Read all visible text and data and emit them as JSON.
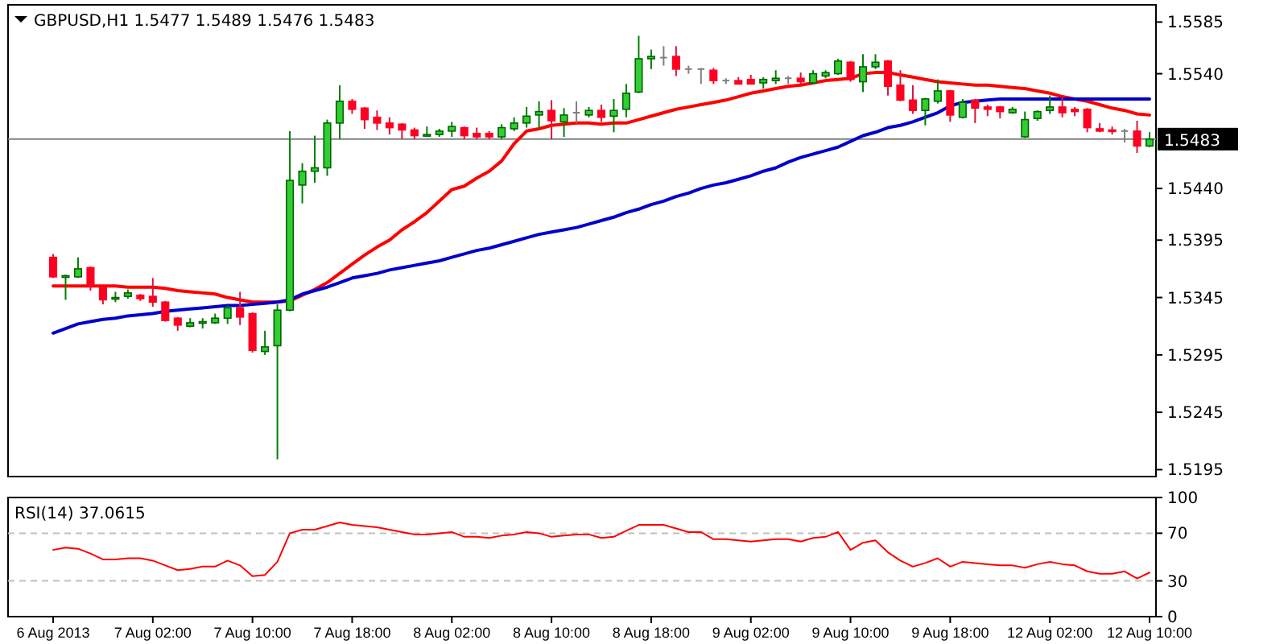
{
  "chart_data": [
    {
      "type": "candlestick",
      "title": "GBPUSD,H1 1.5477 1.5489 1.5476 1.5483",
      "categories": [
        null,
        null,
        null,
        null,
        null,
        null,
        null,
        null,
        null,
        null,
        null,
        null,
        null,
        null,
        null,
        null,
        null,
        null,
        null,
        null,
        null,
        null,
        null,
        null,
        null,
        null,
        null,
        null,
        null,
        null,
        null,
        null,
        null,
        null,
        null,
        null,
        null,
        null,
        null,
        null,
        null,
        null,
        null,
        null,
        null,
        null,
        null,
        null,
        null,
        null,
        null,
        null,
        null,
        null,
        null,
        null,
        null,
        null,
        null,
        null,
        null,
        null,
        null,
        null,
        null,
        null,
        null,
        null,
        null,
        null,
        null,
        null,
        null,
        null,
        null,
        null,
        null,
        null,
        null,
        null,
        null,
        null,
        null,
        null,
        null,
        null,
        null,
        null,
        null
      ],
      "ohlc": [
        [
          1.538,
          1.5383,
          1.5362,
          1.5363
        ],
        [
          1.5363,
          1.5365,
          1.5343,
          1.5364
        ],
        [
          1.5363,
          1.538,
          1.5362,
          1.537
        ],
        [
          1.5371,
          1.5372,
          1.5351,
          1.5356
        ],
        [
          1.5354,
          1.5355,
          1.5339,
          1.5343
        ],
        [
          1.5344,
          1.535,
          1.5341,
          1.5345
        ],
        [
          1.5346,
          1.5352,
          1.5344,
          1.5349
        ],
        [
          1.5347,
          1.5348,
          1.5342,
          1.5344
        ],
        [
          1.5346,
          1.5362,
          1.5337,
          1.5341
        ],
        [
          1.5341,
          1.5342,
          1.5324,
          1.5325
        ],
        [
          1.5327,
          1.5328,
          1.5316,
          1.5321
        ],
        [
          1.532,
          1.5327,
          1.5319,
          1.5323
        ],
        [
          1.5323,
          1.5327,
          1.5318,
          1.5324
        ],
        [
          1.5323,
          1.5331,
          1.5322,
          1.5327
        ],
        [
          1.5327,
          1.5338,
          1.5322,
          1.5336
        ],
        [
          1.5336,
          1.535,
          1.5321,
          1.5328
        ],
        [
          1.5331,
          1.5332,
          1.5297,
          1.5299
        ],
        [
          1.5298,
          1.5316,
          1.5295,
          1.5302
        ],
        [
          1.5303,
          1.5339,
          1.5204,
          1.5334
        ],
        [
          1.5334,
          1.549,
          1.5333,
          1.5447
        ],
        [
          1.5443,
          1.5462,
          1.5427,
          1.5455
        ],
        [
          1.5455,
          1.5486,
          1.5445,
          1.5458
        ],
        [
          1.5458,
          1.55,
          1.5451,
          1.5497
        ],
        [
          1.5497,
          1.553,
          1.5483,
          1.5516
        ],
        [
          1.5516,
          1.5518,
          1.5505,
          1.5509
        ],
        [
          1.551,
          1.5511,
          1.5492,
          1.55
        ],
        [
          1.5502,
          1.5508,
          1.5491,
          1.5497
        ],
        [
          1.5497,
          1.5502,
          1.5487,
          1.5493
        ],
        [
          1.5496,
          1.5497,
          1.5483,
          1.5491
        ],
        [
          1.5491,
          1.5493,
          1.5483,
          1.5486
        ],
        [
          1.5486,
          1.5494,
          1.5485,
          1.5487
        ],
        [
          1.5487,
          1.5492,
          1.5485,
          1.549
        ],
        [
          1.549,
          1.5498,
          1.5485,
          1.5494
        ],
        [
          1.5493,
          1.5494,
          1.5483,
          1.5486
        ],
        [
          1.5488,
          1.5493,
          1.5483,
          1.5485
        ],
        [
          1.5488,
          1.549,
          1.5483,
          1.5485
        ],
        [
          1.5485,
          1.5496,
          1.5483,
          1.5493
        ],
        [
          1.5492,
          1.5502,
          1.549,
          1.5497
        ],
        [
          1.5497,
          1.5511,
          1.5493,
          1.5503
        ],
        [
          1.5504,
          1.5516,
          1.5492,
          1.5507
        ],
        [
          1.5508,
          1.5517,
          1.5483,
          1.5499
        ],
        [
          1.5498,
          1.551,
          1.5485,
          1.5504
        ],
        [
          1.5506,
          1.5516,
          1.5497,
          1.5506
        ],
        [
          1.5504,
          1.5511,
          1.5502,
          1.5508
        ],
        [
          1.5508,
          1.5513,
          1.5498,
          1.5502
        ],
        [
          1.5503,
          1.5518,
          1.5489,
          1.5508
        ],
        [
          1.5509,
          1.5531,
          1.5502,
          1.5523
        ],
        [
          1.5524,
          1.5573,
          1.5523,
          1.5553
        ],
        [
          1.5553,
          1.5561,
          1.5544,
          1.5555
        ],
        [
          1.5554,
          1.5564,
          1.5547,
          1.5554
        ],
        [
          1.5555,
          1.5564,
          1.5538,
          1.5544
        ],
        [
          1.5544,
          1.5547,
          1.554,
          1.5544
        ],
        [
          1.5544,
          1.5545,
          1.5531,
          1.5544
        ],
        [
          1.5543,
          1.5545,
          1.5531,
          1.5534
        ],
        [
          1.5534,
          1.5536,
          1.5531,
          1.5534
        ],
        [
          1.5534,
          1.5537,
          1.5531,
          1.5531
        ],
        [
          1.5535,
          1.5539,
          1.5531,
          1.5531
        ],
        [
          1.5532,
          1.5537,
          1.5527,
          1.5535
        ],
        [
          1.5534,
          1.5543,
          1.5531,
          1.5536
        ],
        [
          1.5536,
          1.5538,
          1.5531,
          1.5536
        ],
        [
          1.5536,
          1.5541,
          1.553,
          1.5533
        ],
        [
          1.5532,
          1.5543,
          1.5531,
          1.554
        ],
        [
          1.5538,
          1.5543,
          1.5536,
          1.5541
        ],
        [
          1.554,
          1.5553,
          1.5539,
          1.5551
        ],
        [
          1.555,
          1.5551,
          1.5533,
          1.5535
        ],
        [
          1.5533,
          1.5557,
          1.5524,
          1.5546
        ],
        [
          1.5546,
          1.5557,
          1.5544,
          1.555
        ],
        [
          1.5551,
          1.5552,
          1.5521,
          1.5529
        ],
        [
          1.553,
          1.5543,
          1.5516,
          1.5517
        ],
        [
          1.5517,
          1.553,
          1.5505,
          1.5508
        ],
        [
          1.5508,
          1.5519,
          1.5495,
          1.5518
        ],
        [
          1.5516,
          1.5535,
          1.5514,
          1.5525
        ],
        [
          1.5525,
          1.5526,
          1.5498,
          1.5504
        ],
        [
          1.5502,
          1.5518,
          1.5501,
          1.5515
        ],
        [
          1.5517,
          1.5518,
          1.5497,
          1.551
        ],
        [
          1.5511,
          1.5513,
          1.5503,
          1.5509
        ],
        [
          1.5511,
          1.5512,
          1.5501,
          1.5507
        ],
        [
          1.5506,
          1.5511,
          1.5505,
          1.5509
        ],
        [
          1.5485,
          1.5507,
          1.5484,
          1.55
        ],
        [
          1.5501,
          1.5508,
          1.5499,
          1.5507
        ],
        [
          1.5508,
          1.5521,
          1.5505,
          1.5511
        ],
        [
          1.5511,
          1.552,
          1.5502,
          1.5506
        ],
        [
          1.5509,
          1.5511,
          1.5503,
          1.5507
        ],
        [
          1.5509,
          1.551,
          1.5489,
          1.5493
        ],
        [
          1.5492,
          1.5497,
          1.5489,
          1.549
        ],
        [
          1.5491,
          1.5494,
          1.5487,
          1.549
        ],
        [
          1.549,
          1.5492,
          1.548,
          1.549
        ],
        [
          1.549,
          1.5499,
          1.5471,
          1.5477
        ],
        [
          1.5477,
          1.5489,
          1.5476,
          1.5483
        ]
      ],
      "series": [
        {
          "type": "line",
          "color": "#ff0000",
          "values": [
            1.5355,
            1.5355,
            1.5355,
            1.5355,
            1.5355,
            1.5355,
            1.5354,
            1.5354,
            1.5354,
            1.5353,
            1.5351,
            1.535,
            1.5349,
            1.5348,
            1.5345,
            1.5343,
            1.5341,
            1.5341,
            1.5341,
            1.5342,
            1.5347,
            1.5352,
            1.5358,
            1.5366,
            1.5374,
            1.5382,
            1.5389,
            1.5395,
            1.5404,
            1.5411,
            1.5419,
            1.5429,
            1.5439,
            1.5442,
            1.5449,
            1.5455,
            1.5464,
            1.5479,
            1.549,
            1.5492,
            1.5495,
            1.5496,
            1.5497,
            1.5497,
            1.5496,
            1.5497,
            1.5497,
            1.55,
            1.5503,
            1.5506,
            1.5509,
            1.5511,
            1.5513,
            1.5515,
            1.5517,
            1.552,
            1.5523,
            1.5525,
            1.5527,
            1.5529,
            1.553,
            1.5532,
            1.5534,
            1.5535,
            1.5536,
            1.554,
            1.5541,
            1.5541,
            1.5539,
            1.5537,
            1.5535,
            1.5533,
            1.5532,
            1.5531,
            1.553,
            1.553,
            1.5529,
            1.5528,
            1.5527,
            1.5525,
            1.5523,
            1.552,
            1.5518,
            1.5516,
            1.5513,
            1.551,
            1.5508,
            1.5505,
            1.5504
          ]
        },
        {
          "type": "line",
          "color": "#0000cd",
          "values": [
            1.5314,
            1.5318,
            1.5322,
            1.5324,
            1.5326,
            1.5327,
            1.5329,
            1.533,
            1.5331,
            1.5333,
            1.5334,
            1.5335,
            1.5336,
            1.5337,
            1.5338,
            1.5338,
            1.5339,
            1.534,
            1.5341,
            1.5343,
            1.5348,
            1.5351,
            1.5354,
            1.5358,
            1.5362,
            1.5364,
            1.5366,
            1.5369,
            1.5371,
            1.5373,
            1.5375,
            1.5377,
            1.538,
            1.5383,
            1.5386,
            1.5388,
            1.5391,
            1.5394,
            1.5397,
            1.54,
            1.5402,
            1.5404,
            1.5406,
            1.5409,
            1.5412,
            1.5415,
            1.5419,
            1.5422,
            1.5426,
            1.5429,
            1.5433,
            1.5436,
            1.544,
            1.5443,
            1.5445,
            1.5448,
            1.5451,
            1.5455,
            1.5458,
            1.5463,
            1.5467,
            1.547,
            1.5473,
            1.5476,
            1.5481,
            1.5486,
            1.5489,
            1.5493,
            1.5495,
            1.5498,
            1.5502,
            1.5506,
            1.5512,
            1.5515,
            1.5516,
            1.5517,
            1.5518,
            1.5518,
            1.5518,
            1.5518,
            1.5518,
            1.5518,
            1.5518,
            1.5518,
            1.5518,
            1.5518,
            1.5518,
            1.5518,
            1.5518
          ]
        }
      ],
      "ylim": [
        1.5189,
        1.56
      ],
      "yticks": [
        1.5585,
        {
          "value": 1.554,
          "label": "1.5540"
        },
        {
          "value": 1.544,
          "label": "1.5440"
        },
        1.5395,
        1.5345,
        1.5295,
        1.5245,
        1.5195
      ],
      "ref_lines": [
        {
          "axis": "y",
          "value": 1.5483,
          "label": "1.5483",
          "color": "#808080"
        }
      ],
      "tick_labels": "y"
    },
    {
      "type": "line",
      "title": "RSI(14) 37.0615",
      "categories": [
        "6 Aug 2013",
        null,
        null,
        null,
        null,
        null,
        null,
        null,
        "7 Aug 02:00",
        null,
        null,
        null,
        null,
        null,
        null,
        null,
        "7 Aug 10:00",
        null,
        null,
        null,
        null,
        null,
        null,
        null,
        "7 Aug 18:00",
        null,
        null,
        null,
        null,
        null,
        null,
        null,
        "8 Aug 02:00",
        null,
        null,
        null,
        null,
        null,
        null,
        null,
        "8 Aug 10:00",
        null,
        null,
        null,
        null,
        null,
        null,
        null,
        "8 Aug 18:00",
        null,
        null,
        null,
        null,
        null,
        null,
        null,
        "9 Aug 02:00",
        null,
        null,
        null,
        null,
        null,
        null,
        null,
        "9 Aug 10:00",
        null,
        null,
        null,
        null,
        null,
        null,
        null,
        "9 Aug 18:00",
        null,
        null,
        null,
        null,
        null,
        null,
        null,
        "12 Aug 02:00",
        null,
        null,
        null,
        null,
        null,
        null,
        null,
        "12 Aug 10:00"
      ],
      "series": [
        {
          "color": "#ff0000",
          "values": [
            56,
            58,
            57,
            53,
            48,
            48,
            49,
            49,
            47,
            43,
            39,
            40,
            42,
            42,
            47,
            43,
            34,
            35,
            46,
            70,
            73,
            73,
            76,
            79,
            77,
            76,
            75,
            73,
            71,
            69,
            69,
            70,
            71,
            67,
            67,
            66,
            68,
            69,
            71,
            70,
            67,
            68,
            69,
            69,
            66,
            67,
            72,
            77,
            77,
            77,
            74,
            71,
            71,
            65,
            65,
            64,
            63,
            64,
            65,
            65,
            63,
            66,
            67,
            71,
            56,
            62,
            64,
            54,
            47,
            42,
            45,
            49,
            42,
            46,
            45,
            44,
            43,
            43,
            41,
            44,
            46,
            44,
            43,
            38,
            36,
            36,
            38,
            32,
            37
          ]
        }
      ],
      "ylim": [
        0,
        100
      ],
      "yticks": [
        100,
        70,
        30,
        0
      ],
      "ref_lines": [
        {
          "axis": "y",
          "value": 70,
          "color": "#c0c0c0",
          "line_style": "dashed"
        },
        {
          "axis": "y",
          "value": 30,
          "color": "#c0c0c0",
          "line_style": "dashed"
        }
      ]
    }
  ]
}
